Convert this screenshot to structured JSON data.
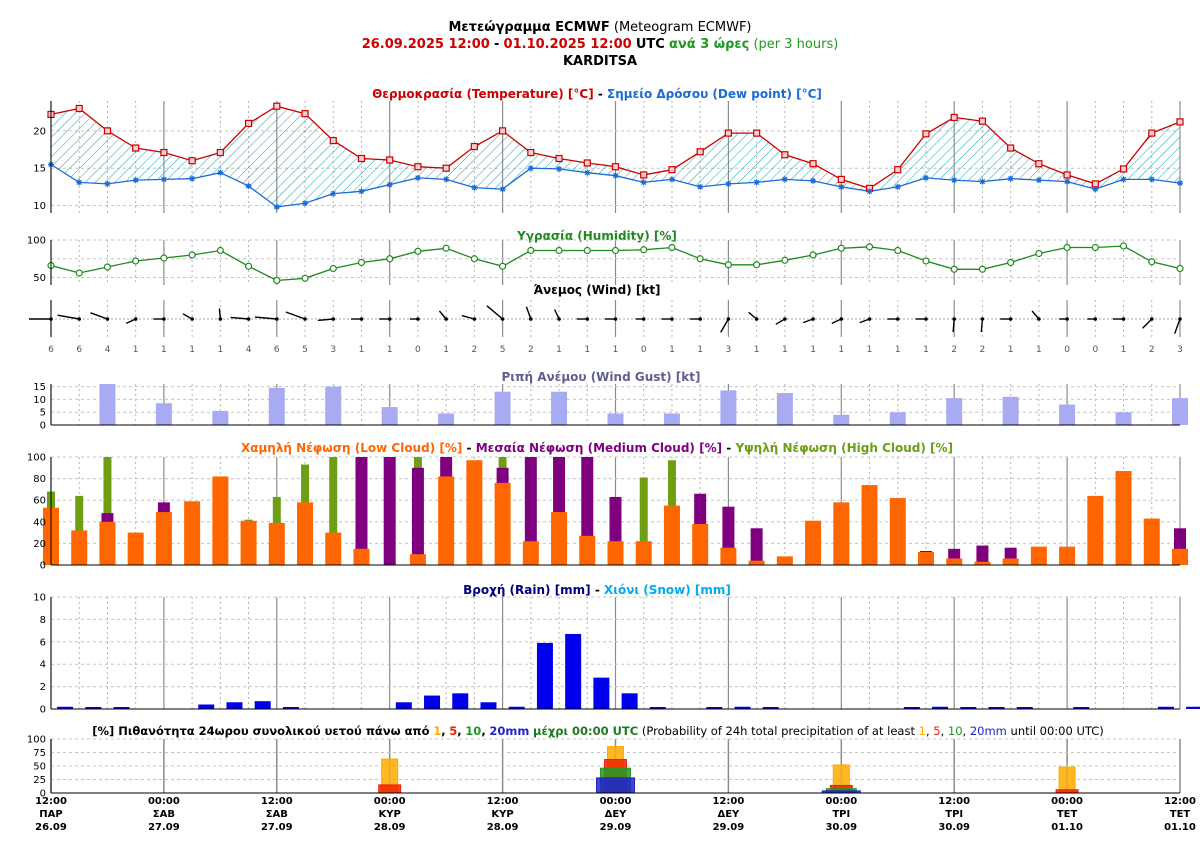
{
  "header": {
    "title_gr": "Μετεώγραμμα ECMWF",
    "title_en": "(Meteogram ECMWF)",
    "start": "26.09.2025 12:00",
    "sep": "-",
    "end": "01.10.2025 12:00",
    "utc": "UTC",
    "step_gr": "ανά 3 ώρες",
    "step_en": "(per 3 hours)",
    "location": "KARDITSA"
  },
  "colors": {
    "temperature": "#cc0000",
    "dewpoint": "#1a6bd6",
    "humidity": "#1e8a1e",
    "gust": "#a9abf2",
    "low_cloud": "#ff6600",
    "medium_cloud": "#7f007f",
    "high_cloud": "#6e9e14",
    "rain": "#0000ee",
    "snow": "#00aaee",
    "p1": "#ffaa00",
    "p5": "#ee2200",
    "p10": "#229922",
    "p20": "#2222cc"
  },
  "chart_data": [
    {
      "type": "line",
      "id": "temperature",
      "title_a": "Θερμοκρασία (Temperature) [°C]",
      "title_sep": "-",
      "title_b": "Σημείο Δρόσου (Dew point) [°C]",
      "ylim": [
        9,
        24
      ],
      "yticks": [
        "10",
        "15",
        "20"
      ],
      "series": [
        {
          "values": [
            22.2,
            23.0,
            20.0,
            17.7,
            17.1,
            16.0,
            17.1,
            21.0,
            23.3,
            22.3,
            18.7,
            16.3,
            16.1,
            15.2,
            15.0,
            17.9,
            20.0,
            17.1,
            16.3,
            15.7,
            15.2,
            14.1,
            14.8,
            17.2,
            19.7,
            19.7,
            16.8,
            15.6,
            13.5,
            12.3,
            14.8,
            19.6,
            21.8,
            21.3,
            17.7,
            15.6,
            14.1,
            12.9,
            14.9,
            19.7,
            21.2
          ]
        },
        {
          "values": [
            15.5,
            13.1,
            12.9,
            13.4,
            13.5,
            13.6,
            14.4,
            12.6,
            9.8,
            10.3,
            11.6,
            11.9,
            12.8,
            13.7,
            13.5,
            12.4,
            12.2,
            15.0,
            14.9,
            14.4,
            14.0,
            13.1,
            13.5,
            12.5,
            12.9,
            13.1,
            13.5,
            13.3,
            12.5,
            11.9,
            12.5,
            13.7,
            13.4,
            13.2,
            13.6,
            13.4,
            13.2,
            12.2,
            13.5,
            13.5,
            13.0
          ]
        }
      ]
    },
    {
      "type": "line",
      "id": "humidity",
      "title": "Υγρασία (Humidity) [%]",
      "ylim": [
        40,
        100
      ],
      "yticks": [
        "50",
        "100"
      ],
      "series": [
        {
          "values": [
            66,
            56,
            64,
            72,
            76,
            80,
            86,
            65,
            46,
            49,
            62,
            70,
            75,
            85,
            89,
            75,
            65,
            86,
            86,
            86,
            86,
            87,
            90,
            75,
            67,
            67,
            73,
            80,
            89,
            91,
            86,
            72,
            61,
            61,
            70,
            82,
            90,
            90,
            92,
            71,
            62
          ]
        }
      ]
    },
    {
      "type": "table",
      "id": "wind",
      "title": "Άνεμος (Wind) [kt]",
      "values": [
        "6",
        "6",
        "4",
        "1",
        "1",
        "1",
        "1",
        "4",
        "6",
        "5",
        "3",
        "1",
        "1",
        "0",
        "1",
        "2",
        "5",
        "2",
        "1",
        "1",
        "1",
        "0",
        "1",
        "1",
        "3",
        "1",
        "1",
        "1",
        "1",
        "1",
        "1",
        "1",
        "2",
        "2",
        "1",
        "1",
        "0",
        "0",
        "1",
        "2",
        "3"
      ],
      "directions": [
        270,
        280,
        290,
        245,
        270,
        300,
        355,
        275,
        275,
        290,
        265,
        270,
        270,
        270,
        320,
        285,
        310,
        340,
        335,
        270,
        270,
        270,
        270,
        270,
        210,
        310,
        240,
        250,
        245,
        250,
        270,
        270,
        185,
        185,
        270,
        320,
        270,
        270,
        270,
        225,
        200
      ]
    },
    {
      "type": "bar",
      "id": "gust",
      "title": "Ριπή Ανέμου (Wind Gust) [kt]",
      "ylim": [
        0,
        16
      ],
      "yticks": [
        "0",
        "5",
        "10",
        "15"
      ],
      "values": [
        16,
        8.5,
        5.5,
        14.5,
        15,
        7,
        4.5,
        13,
        13,
        4.5,
        4.5,
        13.5,
        12.5,
        4,
        5,
        10.5,
        11,
        8,
        5,
        10.5
      ]
    },
    {
      "type": "bar",
      "id": "clouds",
      "title_a": "Χαμηλή Νέφωση (Low Cloud) [%]",
      "title_sep": "-",
      "title_b": "Μεσαία Νέφωση (Medium Cloud) [%]",
      "title_c": "Υψηλή Νέφωση (High Cloud) [%]",
      "ylim": [
        0,
        100
      ],
      "yticks": [
        "0",
        "20",
        "40",
        "60",
        "80",
        "100"
      ],
      "series": [
        {
          "name": "Χαμηλή Νέφωση (Low Cloud)",
          "values": [
            53,
            32,
            40,
            30,
            49,
            59,
            82,
            41,
            39,
            58,
            30,
            15,
            0,
            10,
            82,
            97,
            76,
            22,
            49,
            27,
            22,
            22,
            55,
            38,
            16,
            4,
            8,
            41,
            58,
            74,
            62,
            12,
            6,
            3,
            6,
            17,
            17,
            64,
            87,
            43,
            15
          ]
        },
        {
          "name": "Μεσαία Νέφωση (Medium Cloud)",
          "values": [
            0,
            0,
            48,
            0,
            58,
            0,
            0,
            0,
            0,
            0,
            0,
            100,
            100,
            90,
            100,
            0,
            90,
            100,
            100,
            100,
            63,
            0,
            0,
            66,
            54,
            34,
            0,
            0,
            0,
            0,
            0,
            13,
            15,
            18,
            16,
            0,
            0,
            0,
            0,
            0,
            34
          ]
        },
        {
          "name": "Υψηλή Νέφωση (High Cloud)",
          "values": [
            68,
            64,
            100,
            0,
            0,
            0,
            0,
            42,
            63,
            93,
            100,
            0,
            0,
            100,
            0,
            0,
            100,
            0,
            0,
            0,
            0,
            81,
            97,
            0,
            0,
            0,
            0,
            0,
            0,
            0,
            0,
            0,
            0,
            0,
            0,
            0,
            0,
            0,
            0,
            0,
            0
          ]
        }
      ]
    },
    {
      "type": "bar",
      "id": "precip",
      "title_a": "Βροχή (Rain) [mm]",
      "title_sep": "-",
      "title_b": "Χιόνι (Snow) [mm]",
      "ylim": [
        0,
        10
      ],
      "yticks": [
        "0",
        "2",
        "4",
        "6",
        "8",
        "10"
      ],
      "series": [
        {
          "name": "Βροχή (Rain)",
          "values": [
            0.2,
            0.1,
            0.1,
            0,
            0,
            0.4,
            0.6,
            0.7,
            0.1,
            0,
            0,
            0,
            0.6,
            1.2,
            1.4,
            0.6,
            0.2,
            5.9,
            6.7,
            2.8,
            1.4,
            0.1,
            0,
            0.1,
            0.2,
            0.1,
            0,
            0,
            0,
            0,
            0.1,
            0.2,
            0.1,
            0.1,
            0.1,
            0,
            0.1,
            0,
            0,
            0.2,
            0.2
          ]
        },
        {
          "name": "Χιόνι (Snow)",
          "values": []
        }
      ]
    },
    {
      "type": "bar",
      "id": "probability",
      "title_pre": "[%] Πιθανότητα 24ωρου συνολικού υετού πάνω από",
      "t1": "1",
      "c1": ",",
      "t5": "5",
      "c2": ",",
      "t10": "10",
      "c3": ",",
      "t20": "20mm",
      "title_mid": "μέχρι 00:00 UTC",
      "title_en_pre": "(Probability of 24h total precipitation of at least",
      "e1": "1",
      "ec1": ",",
      "e5": "5",
      "ec2": ",",
      "e10": "10",
      "ec3": ",",
      "e20": "20mm",
      "title_en_post": "until 00:00 UTC)",
      "ylim": [
        0,
        100
      ],
      "yticks": [
        "0",
        "25",
        "50",
        "75",
        "100"
      ],
      "days": [
        {
          "p1": 63,
          "p5": 15,
          "p10": 0,
          "p20": 0
        },
        {
          "p1": 86,
          "p5": 62,
          "p10": 46,
          "p20": 28
        },
        {
          "p1": 52,
          "p5": 14,
          "p10": 8,
          "p20": 4
        },
        {
          "p1": 48,
          "p5": 6,
          "p10": 0,
          "p20": 0
        }
      ]
    }
  ],
  "xaxis": {
    "labels": [
      {
        "t": "12:00",
        "d": "ΠΑΡ",
        "date": "26.09"
      },
      {
        "t": "00:00",
        "d": "ΣΑΒ",
        "date": "27.09"
      },
      {
        "t": "12:00",
        "d": "ΣΑΒ",
        "date": "27.09"
      },
      {
        "t": "00:00",
        "d": "ΚΥΡ",
        "date": "28.09"
      },
      {
        "t": "12:00",
        "d": "ΚΥΡ",
        "date": "28.09"
      },
      {
        "t": "00:00",
        "d": "ΔΕΥ",
        "date": "29.09"
      },
      {
        "t": "12:00",
        "d": "ΔΕΥ",
        "date": "29.09"
      },
      {
        "t": "00:00",
        "d": "ΤΡΙ",
        "date": "30.09"
      },
      {
        "t": "12:00",
        "d": "ΤΡΙ",
        "date": "30.09"
      },
      {
        "t": "00:00",
        "d": "ΤΕΤ",
        "date": "01.10"
      },
      {
        "t": "12:00",
        "d": "ΤΕΤ",
        "date": "01.10"
      }
    ]
  }
}
